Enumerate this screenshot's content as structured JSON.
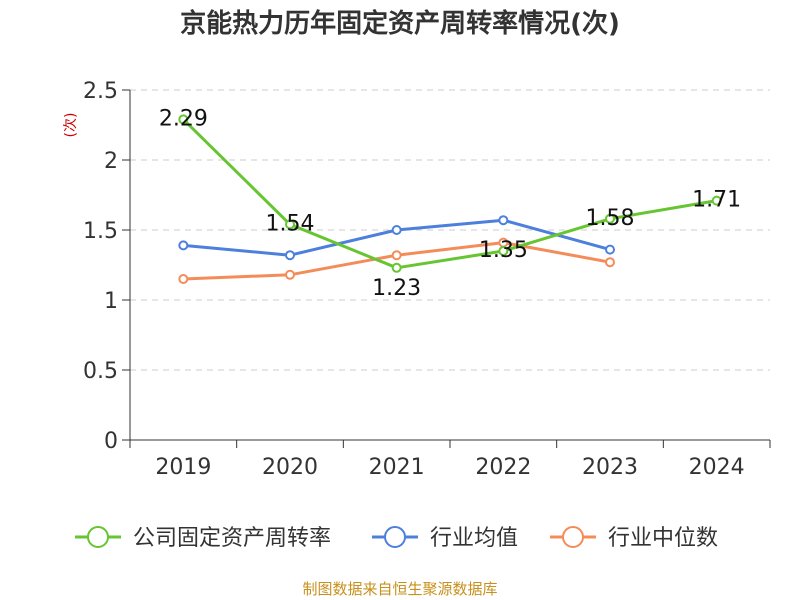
{
  "chart_data": {
    "type": "line",
    "title": "京能热力历年固定资产周转率情况(次)",
    "ylabel": "(次)",
    "xlabel": "",
    "categories": [
      "2019",
      "2020",
      "2021",
      "2022",
      "2023",
      "2024"
    ],
    "ylim": [
      0,
      2.5
    ],
    "yticks": [
      0,
      0.5,
      1,
      1.5,
      2,
      2.5
    ],
    "ytick_labels": [
      "0",
      "0.5",
      "1",
      "1.5",
      "2",
      "2.5"
    ],
    "grid": true,
    "legend_position": "bottom",
    "series": [
      {
        "name": "公司固定资产周转率",
        "color": "#66c531",
        "values": [
          2.29,
          1.54,
          1.23,
          1.35,
          1.58,
          1.71
        ],
        "labels": [
          "2.29",
          "1.54",
          "1.23",
          "1.35",
          "1.58",
          "1.71"
        ]
      },
      {
        "name": "行业均值",
        "color": "#4d80dc",
        "values": [
          1.39,
          1.32,
          1.5,
          1.57,
          1.36,
          null
        ]
      },
      {
        "name": "行业中位数",
        "color": "#f48c5a",
        "values": [
          1.15,
          1.18,
          1.32,
          1.41,
          1.27,
          null
        ]
      }
    ],
    "source": "制图数据来自恒生聚源数据库"
  }
}
